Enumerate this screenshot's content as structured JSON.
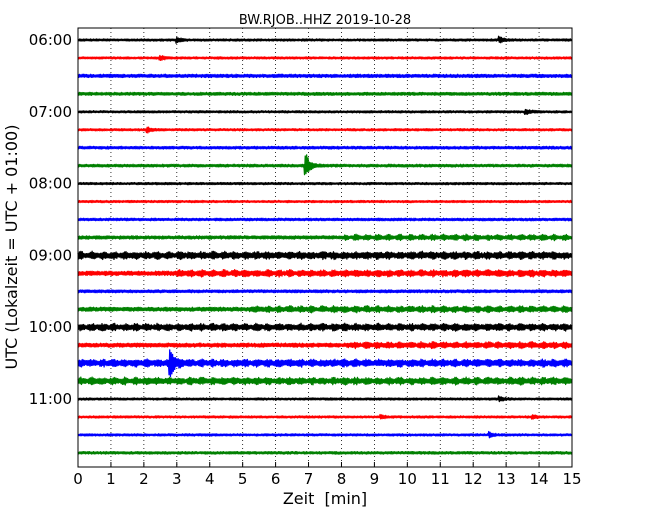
{
  "chart_data": {
    "type": "line",
    "title": "BW.RJOB..HHZ 2019-10-28",
    "xlabel": "Zeit  [min]",
    "ylabel": "UTC (Lokalzeit = UTC + 01:00)",
    "xlim": [
      0,
      15
    ],
    "x_ticks": [
      0,
      1,
      2,
      3,
      4,
      5,
      6,
      7,
      8,
      9,
      10,
      11,
      12,
      13,
      14,
      15
    ],
    "y_tick_labels": [
      "06:00",
      "07:00",
      "08:00",
      "09:00",
      "10:00",
      "11:00"
    ],
    "row_interval_min": 15,
    "grid": "vertical dotted",
    "colors": [
      "#000000",
      "#ff0000",
      "#0000ff",
      "#008000"
    ],
    "series": [
      {
        "start": "06:00",
        "noise": 0.12,
        "events": [
          {
            "t": 3.0,
            "amp": 0.3
          },
          {
            "t": 12.8,
            "amp": 0.3
          }
        ]
      },
      {
        "start": "06:15",
        "noise": 0.12,
        "events": [
          {
            "t": 2.5,
            "amp": 0.25
          }
        ]
      },
      {
        "start": "06:30",
        "noise": 0.18,
        "events": []
      },
      {
        "start": "06:45",
        "noise": 0.16,
        "events": []
      },
      {
        "start": "07:00",
        "noise": 0.12,
        "events": [
          {
            "t": 13.6,
            "amp": 0.3
          }
        ]
      },
      {
        "start": "07:15",
        "noise": 0.12,
        "events": [
          {
            "t": 2.1,
            "amp": 0.3
          }
        ]
      },
      {
        "start": "07:30",
        "noise": 0.15,
        "events": []
      },
      {
        "start": "07:45",
        "noise": 0.15,
        "events": [
          {
            "t": 6.9,
            "amp": 1.6
          }
        ]
      },
      {
        "start": "08:00",
        "noise": 0.12,
        "events": []
      },
      {
        "start": "08:15",
        "noise": 0.12,
        "events": []
      },
      {
        "start": "08:30",
        "noise": 0.14,
        "events": []
      },
      {
        "start": "08:45",
        "noise": 0.18,
        "events": [],
        "bursts_from": 8.1
      },
      {
        "start": "09:00",
        "noise": 0.28,
        "events": [],
        "bursts_from": 0.0
      },
      {
        "start": "09:15",
        "noise": 0.24,
        "events": [],
        "bursts_from": 3.0
      },
      {
        "start": "09:30",
        "noise": 0.16,
        "events": []
      },
      {
        "start": "09:45",
        "noise": 0.22,
        "events": [],
        "bursts_from": 5.2
      },
      {
        "start": "10:00",
        "noise": 0.26,
        "events": [],
        "bursts_from": 0.0
      },
      {
        "start": "10:15",
        "noise": 0.22,
        "events": [],
        "bursts_from": 8.2
      },
      {
        "start": "10:30",
        "noise": 0.28,
        "events": [
          {
            "t": 2.8,
            "amp": 1.5
          }
        ],
        "bursts_from": 0.0
      },
      {
        "start": "10:45",
        "noise": 0.26,
        "events": [],
        "bursts_from": 0.0
      },
      {
        "start": "11:00",
        "noise": 0.12,
        "events": [
          {
            "t": 12.8,
            "amp": 0.25
          }
        ]
      },
      {
        "start": "11:15",
        "noise": 0.12,
        "events": [
          {
            "t": 9.2,
            "amp": 0.2
          },
          {
            "t": 13.8,
            "amp": 0.25
          }
        ]
      },
      {
        "start": "11:30",
        "noise": 0.12,
        "events": [
          {
            "t": 12.5,
            "amp": 0.25
          }
        ]
      },
      {
        "start": "11:45",
        "noise": 0.14,
        "events": []
      }
    ]
  }
}
